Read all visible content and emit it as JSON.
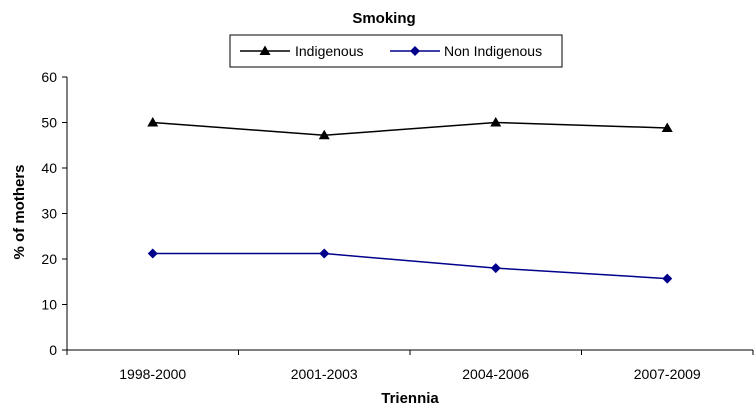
{
  "chart_data": {
    "type": "line",
    "title": "Smoking",
    "xlabel": "Triennia",
    "ylabel": "% of mothers",
    "categories": [
      "1998-2000",
      "2001-2003",
      "2004-2006",
      "2007-2009"
    ],
    "ylim": [
      0,
      60
    ],
    "yticks": [
      0,
      10,
      20,
      30,
      40,
      50,
      60
    ],
    "grid": false,
    "legend_position": "top-center",
    "series": [
      {
        "name": "Indigenous",
        "values": [
          50.0,
          47.2,
          50.0,
          48.8
        ],
        "color": "#000000",
        "marker": "triangle"
      },
      {
        "name": "Non Indigenous",
        "values": [
          21.2,
          21.2,
          18.0,
          15.7
        ],
        "color": "#00008B",
        "marker": "diamond"
      }
    ]
  }
}
